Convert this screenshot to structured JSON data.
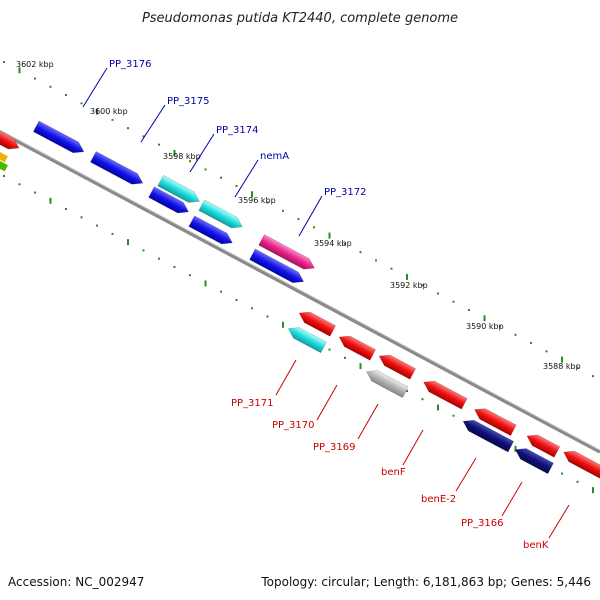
{
  "title": "Pseudomonas putida KT2440, complete genome",
  "footer": {
    "accession": "Accession: NC_002947",
    "summary": "Topology: circular; Length: 6,181,863 bp; Genes: 5,446"
  },
  "kbp_labels": [
    "3602 kbp",
    "3600 kbp",
    "3598 kbp",
    "3596 kbp",
    "3594 kbp",
    "3592 kbp",
    "3590 kbp",
    "3588 kbp"
  ],
  "genes_top": [
    "PP_3176",
    "PP_3175",
    "PP_3174",
    "nemA",
    "PP_3172"
  ],
  "genes_bottom": [
    "PP_3171",
    "PP_3170",
    "PP_3169",
    "benF",
    "benE-2",
    "PP_3166",
    "benK"
  ],
  "colors": {
    "blue": "#1414e6",
    "cyan": "#22dcdc",
    "magenta": "#e8248c",
    "red": "#ee1111",
    "navy": "#101078",
    "gray": "#b4b4b4",
    "scale_tick": "#2a8a2a",
    "backbone": "#888888"
  }
}
